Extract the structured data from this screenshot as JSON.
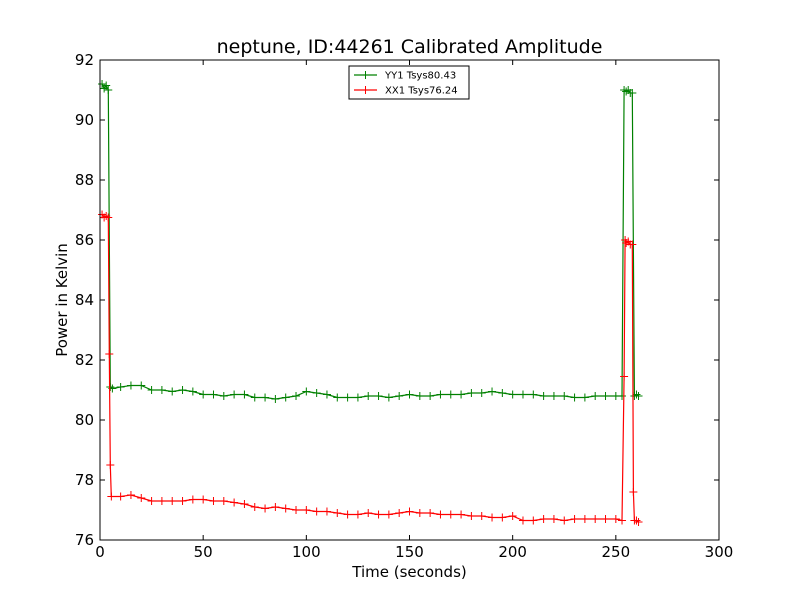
{
  "chart_data": {
    "type": "line",
    "title": "neptune, ID:44261 Calibrated Amplitude",
    "xlabel": "Time (seconds)",
    "ylabel": "Power in Kelvin",
    "xlim": [
      0,
      300
    ],
    "ylim": [
      76,
      92
    ],
    "xticks": [
      0,
      50,
      100,
      150,
      200,
      250,
      300
    ],
    "yticks": [
      76,
      78,
      80,
      82,
      84,
      86,
      88,
      90,
      92
    ],
    "grid": false,
    "legend_position": "top-center",
    "series": [
      {
        "name": "YY1 Tsys80.43",
        "color": "#008000",
        "marker": "+",
        "points": [
          [
            1,
            91.2
          ],
          [
            2,
            91.05
          ],
          [
            3,
            91.15
          ],
          [
            4,
            91.0
          ],
          [
            5,
            81.1
          ],
          [
            6,
            81.05
          ],
          [
            10,
            81.1
          ],
          [
            15,
            81.15
          ],
          [
            20,
            81.15
          ],
          [
            25,
            81.0
          ],
          [
            30,
            81.0
          ],
          [
            35,
            80.95
          ],
          [
            40,
            81.0
          ],
          [
            45,
            80.95
          ],
          [
            50,
            80.85
          ],
          [
            55,
            80.85
          ],
          [
            60,
            80.8
          ],
          [
            65,
            80.85
          ],
          [
            70,
            80.85
          ],
          [
            75,
            80.75
          ],
          [
            80,
            80.75
          ],
          [
            85,
            80.7
          ],
          [
            90,
            80.75
          ],
          [
            95,
            80.8
          ],
          [
            100,
            80.95
          ],
          [
            105,
            80.9
          ],
          [
            110,
            80.85
          ],
          [
            115,
            80.75
          ],
          [
            120,
            80.75
          ],
          [
            125,
            80.75
          ],
          [
            130,
            80.8
          ],
          [
            135,
            80.8
          ],
          [
            140,
            80.75
          ],
          [
            145,
            80.8
          ],
          [
            150,
            80.85
          ],
          [
            155,
            80.8
          ],
          [
            160,
            80.8
          ],
          [
            165,
            80.85
          ],
          [
            170,
            80.85
          ],
          [
            175,
            80.85
          ],
          [
            180,
            80.9
          ],
          [
            185,
            80.9
          ],
          [
            190,
            80.95
          ],
          [
            195,
            80.9
          ],
          [
            200,
            80.85
          ],
          [
            205,
            80.85
          ],
          [
            210,
            80.85
          ],
          [
            215,
            80.8
          ],
          [
            220,
            80.8
          ],
          [
            225,
            80.8
          ],
          [
            230,
            80.75
          ],
          [
            235,
            80.75
          ],
          [
            240,
            80.8
          ],
          [
            245,
            80.8
          ],
          [
            250,
            80.8
          ],
          [
            253,
            80.8
          ],
          [
            254,
            91.0
          ],
          [
            255,
            90.95
          ],
          [
            256,
            91.0
          ],
          [
            257,
            90.9
          ],
          [
            258,
            90.9
          ],
          [
            259,
            80.8
          ],
          [
            260,
            80.85
          ],
          [
            261,
            80.8
          ]
        ]
      },
      {
        "name": "XX1 Tsys76.24",
        "color": "#ff0000",
        "marker": "+",
        "points": [
          [
            1,
            86.85
          ],
          [
            2,
            86.75
          ],
          [
            3,
            86.8
          ],
          [
            4,
            86.75
          ],
          [
            4.5,
            82.2
          ],
          [
            5,
            78.5
          ],
          [
            5.5,
            77.45
          ],
          [
            10,
            77.45
          ],
          [
            15,
            77.5
          ],
          [
            20,
            77.4
          ],
          [
            25,
            77.3
          ],
          [
            30,
            77.3
          ],
          [
            35,
            77.3
          ],
          [
            40,
            77.3
          ],
          [
            45,
            77.35
          ],
          [
            50,
            77.35
          ],
          [
            55,
            77.3
          ],
          [
            60,
            77.3
          ],
          [
            65,
            77.25
          ],
          [
            70,
            77.2
          ],
          [
            75,
            77.1
          ],
          [
            80,
            77.05
          ],
          [
            85,
            77.1
          ],
          [
            90,
            77.05
          ],
          [
            95,
            77.0
          ],
          [
            100,
            77.0
          ],
          [
            105,
            76.95
          ],
          [
            110,
            76.95
          ],
          [
            115,
            76.9
          ],
          [
            120,
            76.85
          ],
          [
            125,
            76.85
          ],
          [
            130,
            76.9
          ],
          [
            135,
            76.85
          ],
          [
            140,
            76.85
          ],
          [
            145,
            76.9
          ],
          [
            150,
            76.95
          ],
          [
            155,
            76.9
          ],
          [
            160,
            76.9
          ],
          [
            165,
            76.85
          ],
          [
            170,
            76.85
          ],
          [
            175,
            76.85
          ],
          [
            180,
            76.8
          ],
          [
            185,
            76.8
          ],
          [
            190,
            76.75
          ],
          [
            195,
            76.75
          ],
          [
            200,
            76.8
          ],
          [
            205,
            76.65
          ],
          [
            210,
            76.65
          ],
          [
            215,
            76.7
          ],
          [
            220,
            76.7
          ],
          [
            225,
            76.65
          ],
          [
            230,
            76.7
          ],
          [
            235,
            76.7
          ],
          [
            240,
            76.7
          ],
          [
            245,
            76.7
          ],
          [
            250,
            76.7
          ],
          [
            253,
            76.65
          ],
          [
            254,
            81.45
          ],
          [
            254.5,
            86.0
          ],
          [
            255,
            85.9
          ],
          [
            256,
            85.95
          ],
          [
            257,
            85.85
          ],
          [
            258,
            85.85
          ],
          [
            258.5,
            77.6
          ],
          [
            259,
            76.65
          ],
          [
            260,
            76.65
          ],
          [
            261,
            76.6
          ]
        ]
      }
    ]
  }
}
